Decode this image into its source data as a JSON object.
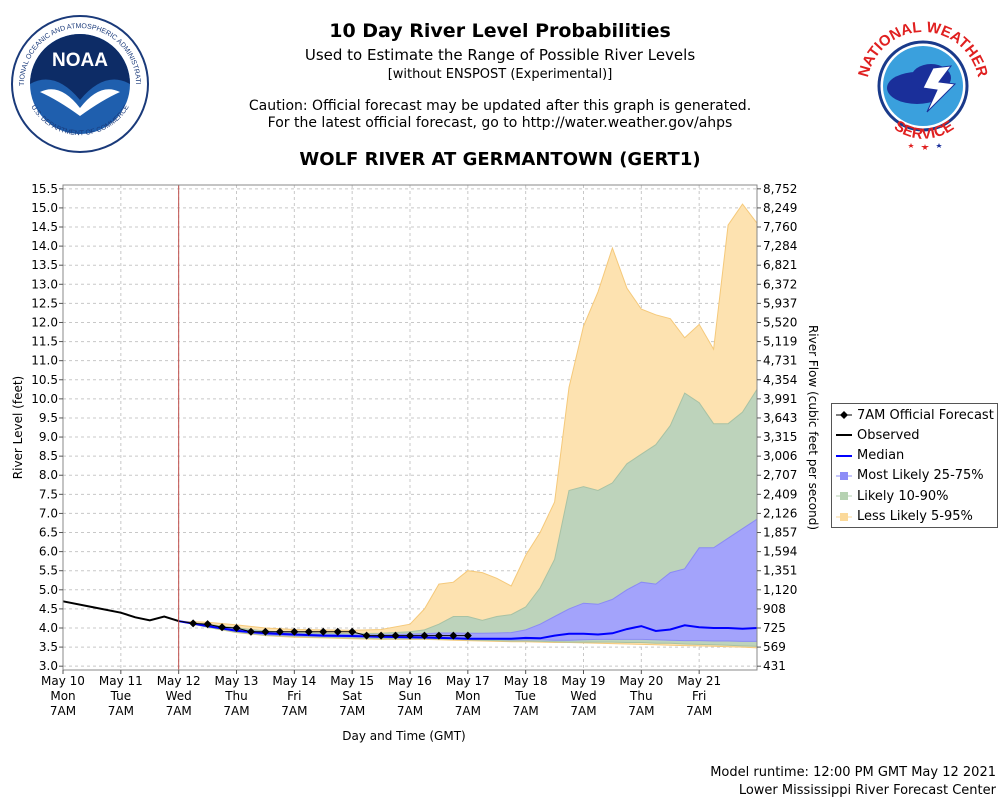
{
  "header": {
    "title": "10 Day River Level Probabilities",
    "subtitle": "Used to Estimate the Range of Possible River Levels",
    "note": "[without ENSPOST (Experimental)]",
    "caution_line1": "Caution: Official forecast may be updated after this graph is generated.",
    "caution_line2": "For the latest official forecast, go to http://water.weather.gov/ahps",
    "gauge": "WOLF RIVER AT GERMANTOWN (GERT1)"
  },
  "logos": {
    "noaa_text": "NOAA",
    "noaa_ring": "NATIONAL OCEANIC AND ATMOSPHERIC ADMINISTRATION",
    "noaa_ring_bottom": "U.S. DEPARTMENT OF COMMERCE",
    "nws_ring_top": "NATIONAL WEATHER",
    "nws_ring_bottom": "SERVICE"
  },
  "footer": {
    "runtime": "Model runtime: 12:00 PM GMT May 12 2021",
    "center": "Lower Mississippi River Forecast Center"
  },
  "legend": {
    "items": [
      {
        "label": "7AM Official Forecast",
        "kind": "forecast",
        "color": "#000000"
      },
      {
        "label": "Observed",
        "kind": "line",
        "color": "#000000"
      },
      {
        "label": "Median",
        "kind": "line",
        "color": "#0000ff"
      },
      {
        "label": "Most Likely 25-75%",
        "kind": "band",
        "color": "#8c8cf7"
      },
      {
        "label": "Likely 10-90%",
        "kind": "band",
        "color": "#b6d2b2"
      },
      {
        "label": "Less Likely 5-95%",
        "kind": "band",
        "color": "#fbd99a"
      }
    ]
  },
  "colors": {
    "band_5_95": "#fde2b0",
    "band_10_90": "#bdd3bb",
    "band_25_75": "#a3a3fb",
    "median": "#0000ff",
    "observed": "#000000",
    "now_line": "#c0504d",
    "grid": "#c8c8c8"
  },
  "chart_data": {
    "type": "area",
    "ylabel": "River Level (feet)",
    "y2label": "River Flow (cubic feet per second)",
    "xlabel": "Day and Time (GMT)",
    "ylim": [
      2.9,
      15.6
    ],
    "xlim": [
      0,
      12.0
    ],
    "y_ticks": [
      3.0,
      3.5,
      4.0,
      4.5,
      5.0,
      5.5,
      6.0,
      6.5,
      7.0,
      7.5,
      8.0,
      8.5,
      9.0,
      9.5,
      10.0,
      10.5,
      11.0,
      11.5,
      12.0,
      12.5,
      13.0,
      13.5,
      14.0,
      14.5,
      15.0,
      15.5
    ],
    "y_tick_labels": [
      "3.0",
      "3.5",
      "4.0",
      "4.5",
      "5.0",
      "5.5",
      "6.0",
      "6.5",
      "7.0",
      "7.5",
      "8.0",
      "8.5",
      "9.0",
      "9.5",
      "10.0",
      "10.5",
      "11.0",
      "11.5",
      "12.0",
      "12.5",
      "13.0",
      "13.5",
      "14.0",
      "14.5",
      "15.0",
      "15.5"
    ],
    "flow_ticks": [
      "431",
      "569",
      "725",
      "908",
      "1,120",
      "1,351",
      "1,594",
      "1,857",
      "2,126",
      "2,409",
      "2,707",
      "3,006",
      "3,315",
      "3,643",
      "3,991",
      "4,354",
      "4,731",
      "5,119",
      "5,520",
      "5,937",
      "6,372",
      "6,821",
      "7,284",
      "7,760",
      "8,249",
      "8,752"
    ],
    "x_ticks": [
      {
        "day": "May 10",
        "dow": "Mon",
        "time": "7AM"
      },
      {
        "day": "May 11",
        "dow": "Tue",
        "time": "7AM"
      },
      {
        "day": "May 12",
        "dow": "Wed",
        "time": "7AM"
      },
      {
        "day": "May 13",
        "dow": "Thu",
        "time": "7AM"
      },
      {
        "day": "May 14",
        "dow": "Fri",
        "time": "7AM"
      },
      {
        "day": "May 15",
        "dow": "Sat",
        "time": "7AM"
      },
      {
        "day": "May 16",
        "dow": "Sun",
        "time": "7AM"
      },
      {
        "day": "May 17",
        "dow": "Mon",
        "time": "7AM"
      },
      {
        "day": "May 18",
        "dow": "Tue",
        "time": "7AM"
      },
      {
        "day": "May 19",
        "dow": "Wed",
        "time": "7AM"
      },
      {
        "day": "May 20",
        "dow": "Thu",
        "time": "7AM"
      },
      {
        "day": "May 21",
        "dow": "Fri",
        "time": "7AM"
      }
    ],
    "now_x": 2.0,
    "observed": {
      "x": [
        0.0,
        0.5,
        1.0,
        1.25,
        1.5,
        1.75,
        2.0
      ],
      "y": [
        4.7,
        4.55,
        4.4,
        4.28,
        4.2,
        4.3,
        4.18
      ]
    },
    "forecast": {
      "x": [
        2.25,
        2.5,
        2.75,
        3.0,
        3.25,
        3.5,
        3.75,
        4.0,
        4.25,
        4.5,
        4.75,
        5.0,
        5.25,
        5.5,
        5.75,
        6.0,
        6.25,
        6.5,
        6.75,
        7.0
      ],
      "y": [
        4.12,
        4.1,
        4.02,
        4.0,
        3.9,
        3.9,
        3.9,
        3.9,
        3.9,
        3.9,
        3.9,
        3.9,
        3.8,
        3.8,
        3.8,
        3.8,
        3.8,
        3.8,
        3.8,
        3.8
      ]
    },
    "x_ens": [
      2.0,
      2.5,
      3.0,
      3.5,
      4.0,
      4.5,
      5.0,
      5.5,
      6.0,
      6.25,
      6.5,
      6.75,
      7.0,
      7.25,
      7.5,
      7.75,
      8.0,
      8.25,
      8.5,
      8.75,
      9.0,
      9.25,
      9.5,
      9.75,
      10.0,
      10.25,
      10.5,
      10.75,
      11.0,
      11.25,
      11.5,
      11.75,
      12.0
    ],
    "median": [
      4.18,
      4.05,
      3.93,
      3.86,
      3.83,
      3.8,
      3.79,
      3.77,
      3.76,
      3.75,
      3.74,
      3.73,
      3.72,
      3.72,
      3.72,
      3.72,
      3.74,
      3.73,
      3.8,
      3.85,
      3.85,
      3.83,
      3.86,
      3.97,
      4.05,
      3.92,
      3.96,
      4.07,
      4.02,
      4.0,
      4.0,
      3.98,
      4.0
    ],
    "bands": [
      {
        "name": "5-95%",
        "lower": [
          4.18,
          4.02,
          3.88,
          3.8,
          3.76,
          3.74,
          3.72,
          3.7,
          3.7,
          3.7,
          3.69,
          3.68,
          3.67,
          3.66,
          3.65,
          3.64,
          3.64,
          3.63,
          3.62,
          3.62,
          3.61,
          3.6,
          3.59,
          3.58,
          3.57,
          3.56,
          3.55,
          3.54,
          3.53,
          3.52,
          3.51,
          3.5,
          3.48
        ],
        "upper": [
          4.18,
          4.15,
          4.08,
          4.0,
          3.96,
          3.95,
          3.94,
          3.96,
          4.1,
          4.5,
          5.15,
          5.2,
          5.5,
          5.45,
          5.3,
          5.1,
          5.9,
          6.5,
          7.3,
          10.3,
          11.9,
          12.8,
          13.95,
          12.9,
          12.35,
          12.2,
          12.1,
          11.6,
          11.95,
          11.3,
          14.55,
          15.1,
          14.6
        ]
      },
      {
        "name": "10-90%",
        "lower": [
          4.18,
          4.02,
          3.89,
          3.81,
          3.78,
          3.76,
          3.74,
          3.72,
          3.72,
          3.72,
          3.71,
          3.7,
          3.69,
          3.68,
          3.67,
          3.66,
          3.66,
          3.65,
          3.64,
          3.63,
          3.63,
          3.63,
          3.63,
          3.62,
          3.62,
          3.6,
          3.6,
          3.58,
          3.57,
          3.56,
          3.55,
          3.53,
          3.52
        ],
        "upper": [
          4.18,
          4.1,
          4.0,
          3.92,
          3.88,
          3.86,
          3.85,
          3.86,
          3.9,
          3.95,
          4.1,
          4.3,
          4.3,
          4.2,
          4.3,
          4.35,
          4.55,
          5.05,
          5.8,
          7.6,
          7.7,
          7.6,
          7.8,
          8.3,
          8.55,
          8.8,
          9.3,
          10.15,
          9.9,
          9.35,
          9.35,
          9.65,
          10.25
        ]
      },
      {
        "name": "25-75%",
        "lower": [
          4.18,
          4.04,
          3.91,
          3.83,
          3.8,
          3.78,
          3.77,
          3.75,
          3.74,
          3.74,
          3.73,
          3.72,
          3.71,
          3.7,
          3.7,
          3.69,
          3.69,
          3.69,
          3.68,
          3.68,
          3.69,
          3.7,
          3.7,
          3.7,
          3.7,
          3.69,
          3.68,
          3.67,
          3.67,
          3.66,
          3.66,
          3.65,
          3.65
        ],
        "upper": [
          4.18,
          4.07,
          3.96,
          3.89,
          3.85,
          3.83,
          3.82,
          3.82,
          3.84,
          3.85,
          3.87,
          3.87,
          3.86,
          3.86,
          3.87,
          3.88,
          3.95,
          4.1,
          4.3,
          4.5,
          4.65,
          4.62,
          4.75,
          5.0,
          5.2,
          5.15,
          5.45,
          5.55,
          6.1,
          6.1,
          6.35,
          6.6,
          6.85
        ]
      }
    ]
  }
}
